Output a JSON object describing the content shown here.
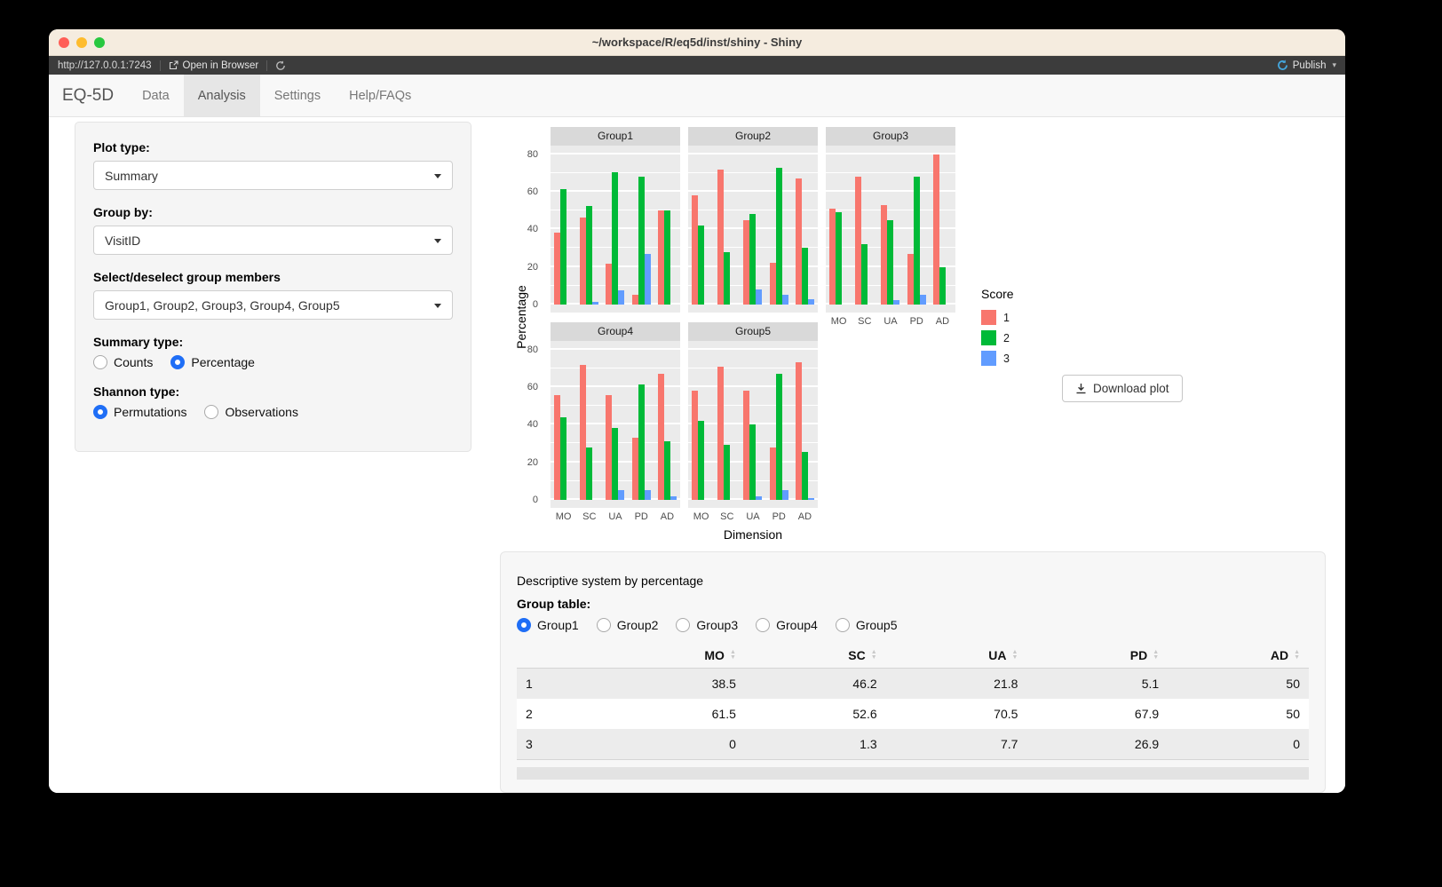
{
  "window": {
    "title": "~/workspace/R/eq5d/inst/shiny - Shiny"
  },
  "toolbar": {
    "url": "http://127.0.0.1:7243",
    "open_in_browser": "Open in Browser",
    "publish": "Publish"
  },
  "nav": {
    "brand": "EQ-5D",
    "tabs": [
      {
        "label": "Data",
        "active": false
      },
      {
        "label": "Analysis",
        "active": true
      },
      {
        "label": "Settings",
        "active": false
      },
      {
        "label": "Help/FAQs",
        "active": false
      }
    ]
  },
  "sidebar": {
    "plot_type_label": "Plot type:",
    "plot_type_value": "Summary",
    "group_by_label": "Group by:",
    "group_by_value": "VisitID",
    "members_label": "Select/deselect group members",
    "members_value": "Group1, Group2, Group3, Group4, Group5",
    "summary_type_label": "Summary type:",
    "summary_options": [
      {
        "label": "Counts",
        "selected": false
      },
      {
        "label": "Percentage",
        "selected": true
      }
    ],
    "shannon_type_label": "Shannon type:",
    "shannon_options": [
      {
        "label": "Permutations",
        "selected": true
      },
      {
        "label": "Observations",
        "selected": false
      }
    ]
  },
  "colors": {
    "ui_accent": "#1f6ef6",
    "publish_icon": "#44a6dc",
    "panel_bg": "#ebebeb",
    "strip_bg": "#d9d9d9"
  },
  "chart_data": {
    "type": "bar",
    "title": "",
    "xlabel": "Dimension",
    "ylabel": "Percentage",
    "ylim": [
      0,
      80
    ],
    "yticks": [
      0,
      20,
      40,
      60,
      80
    ],
    "minor_ticks": [
      10,
      30,
      50,
      70
    ],
    "grid": true,
    "legend_title": "Score",
    "legend_position": "right",
    "categories": [
      "MO",
      "SC",
      "UA",
      "PD",
      "AD"
    ],
    "series": [
      {
        "name": "1",
        "color": "#F8766D"
      },
      {
        "name": "2",
        "color": "#00BA38"
      },
      {
        "name": "3",
        "color": "#619CFF"
      }
    ],
    "facets": [
      {
        "name": "Group1",
        "values": {
          "1": [
            38.5,
            46.2,
            21.8,
            5.1,
            50
          ],
          "2": [
            61.5,
            52.6,
            70.5,
            67.9,
            50
          ],
          "3": [
            0,
            1.3,
            7.7,
            26.9,
            0
          ]
        }
      },
      {
        "name": "Group2",
        "values": {
          "1": [
            58,
            72,
            45,
            22,
            67
          ],
          "2": [
            42,
            28,
            48,
            73,
            30
          ],
          "3": [
            0,
            0,
            8,
            5,
            3
          ]
        }
      },
      {
        "name": "Group3",
        "values": {
          "1": [
            51,
            68,
            53,
            27,
            80
          ],
          "2": [
            49,
            32,
            45,
            68,
            20
          ],
          "3": [
            0,
            0,
            2.5,
            5,
            0
          ]
        }
      },
      {
        "name": "Group4",
        "values": {
          "1": [
            56,
            72,
            56,
            33,
            67
          ],
          "2": [
            44,
            28,
            38.5,
            61.5,
            31
          ],
          "3": [
            0,
            0,
            5,
            5,
            2
          ]
        }
      },
      {
        "name": "Group5",
        "values": {
          "1": [
            58,
            71,
            58,
            28,
            73.5
          ],
          "2": [
            42,
            29.5,
            40,
            67,
            25.5
          ],
          "3": [
            0,
            0,
            2,
            5,
            1
          ]
        }
      }
    ]
  },
  "download_button": "Download plot",
  "table_panel": {
    "caption": "Descriptive system by percentage",
    "group_label": "Group table:",
    "groups": [
      "Group1",
      "Group2",
      "Group3",
      "Group4",
      "Group5"
    ],
    "selected_group": "Group1",
    "columns": [
      "MO",
      "SC",
      "UA",
      "PD",
      "AD"
    ],
    "rows": [
      {
        "label": "1",
        "values": [
          "38.5",
          "46.2",
          "21.8",
          "5.1",
          "50"
        ]
      },
      {
        "label": "2",
        "values": [
          "61.5",
          "52.6",
          "70.5",
          "67.9",
          "50"
        ]
      },
      {
        "label": "3",
        "values": [
          "0",
          "1.3",
          "7.7",
          "26.9",
          "0"
        ]
      }
    ]
  }
}
